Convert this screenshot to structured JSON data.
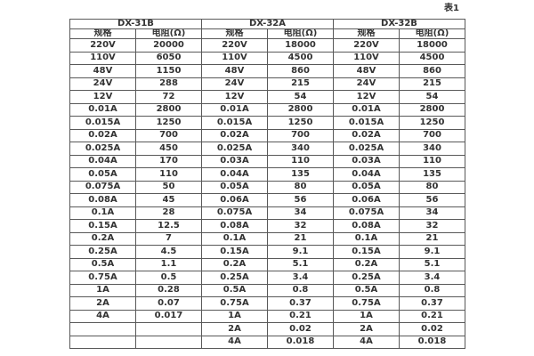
{
  "page": {
    "table_label": "表1"
  },
  "table": {
    "groups": [
      {
        "name": "DX-31B"
      },
      {
        "name": "DX-32A"
      },
      {
        "name": "DX-32B"
      }
    ],
    "column_headers": {
      "spec": "规格",
      "resistance": "电阻(Ω)"
    },
    "rows": [
      [
        "220V",
        "20000",
        "220V",
        "18000",
        "220V",
        "18000"
      ],
      [
        "110V",
        "6050",
        "110V",
        "4500",
        "110V",
        "4500"
      ],
      [
        "48V",
        "1150",
        "48V",
        "860",
        "48V",
        "860"
      ],
      [
        "24V",
        "288",
        "24V",
        "215",
        "24V",
        "215"
      ],
      [
        "12V",
        "72",
        "12V",
        "54",
        "12V",
        "54"
      ],
      [
        "0.01A",
        "2800",
        "0.01A",
        "2800",
        "0.01A",
        "2800"
      ],
      [
        "0.015A",
        "1250",
        "0.015A",
        "1250",
        "0.015A",
        "1250"
      ],
      [
        "0.02A",
        "700",
        "0.02A",
        "700",
        "0.02A",
        "700"
      ],
      [
        "0.025A",
        "450",
        "0.025A",
        "340",
        "0.025A",
        "340"
      ],
      [
        "0.04A",
        "170",
        "0.03A",
        "110",
        "0.03A",
        "110"
      ],
      [
        "0.05A",
        "110",
        "0.04A",
        "135",
        "0.04A",
        "135"
      ],
      [
        "0.075A",
        "50",
        "0.05A",
        "80",
        "0.05A",
        "80"
      ],
      [
        "0.08A",
        "45",
        "0.06A",
        "56",
        "0.06A",
        "56"
      ],
      [
        "0.1A",
        "28",
        "0.075A",
        "34",
        "0.075A",
        "34"
      ],
      [
        "0.15A",
        "12.5",
        "0.08A",
        "32",
        "0.08A",
        "32"
      ],
      [
        "0.2A",
        "7",
        "0.1A",
        "21",
        "0.1A",
        "21"
      ],
      [
        "0.25A",
        "4.5",
        "0.15A",
        "9.1",
        "0.15A",
        "9.1"
      ],
      [
        "0.5A",
        "1.1",
        "0.2A",
        "5.1",
        "0.2A",
        "5.1"
      ],
      [
        "0.75A",
        "0.5",
        "0.25A",
        "3.4",
        "0.25A",
        "3.4"
      ],
      [
        "1A",
        "0.28",
        "0.5A",
        "0.8",
        "0.5A",
        "0.8"
      ],
      [
        "2A",
        "0.07",
        "0.75A",
        "0.37",
        "0.75A",
        "0.37"
      ],
      [
        "4A",
        "0.017",
        "1A",
        "0.21",
        "1A",
        "0.21"
      ],
      [
        "",
        "",
        "2A",
        "0.02",
        "2A",
        "0.02"
      ],
      [
        "",
        "",
        "4A",
        "0.018",
        "4A",
        "0.018"
      ]
    ]
  },
  "colors": {
    "text": "#333333",
    "border": "#595959",
    "background": "#ffffff"
  }
}
